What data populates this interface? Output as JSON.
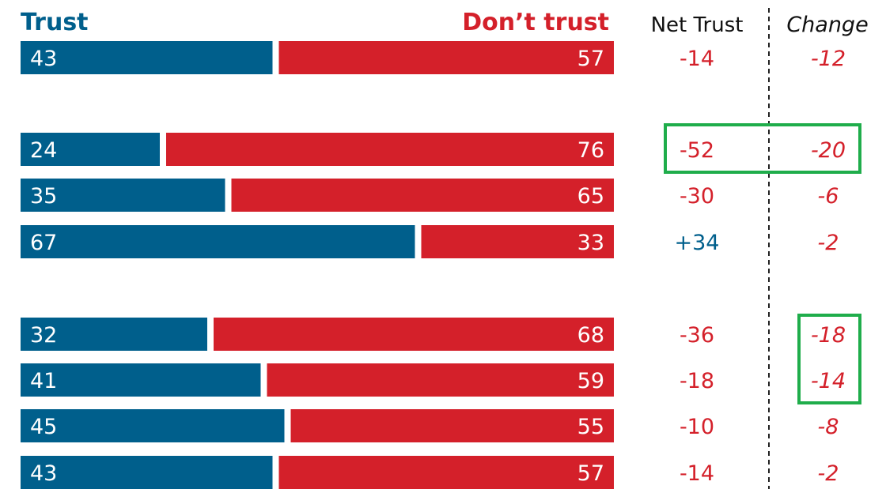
{
  "chart_data": {
    "type": "bar",
    "stacked": true,
    "orientation": "horizontal",
    "series": [
      {
        "name": "Trust",
        "values": [
          43,
          24,
          35,
          67,
          32,
          41,
          45,
          43
        ]
      },
      {
        "name": "Don’t trust",
        "values": [
          57,
          76,
          65,
          33,
          68,
          59,
          55,
          57
        ]
      }
    ],
    "headers": {
      "trust": "Trust",
      "dont_trust": "Don’t trust",
      "net": "Net Trust",
      "change": "Change"
    },
    "net_trust": [
      "-14",
      "-52",
      "-30",
      "+34",
      "-36",
      "-18",
      "-10",
      "-14"
    ],
    "change": [
      "-12",
      "-20",
      "-6",
      "-2",
      "-18",
      "-14",
      "-8",
      "-2"
    ],
    "groups": [
      [
        0
      ],
      [
        1,
        2,
        3
      ],
      [
        4,
        5,
        6,
        7
      ]
    ],
    "highlighted": {
      "net_trust": [
        1
      ],
      "change": [
        1,
        4,
        5
      ]
    },
    "colors": {
      "trust": "#005f8c",
      "dont_trust": "#d4202a",
      "highlight": "#1fad4b",
      "header": "#111111",
      "divider": "#222222"
    }
  }
}
